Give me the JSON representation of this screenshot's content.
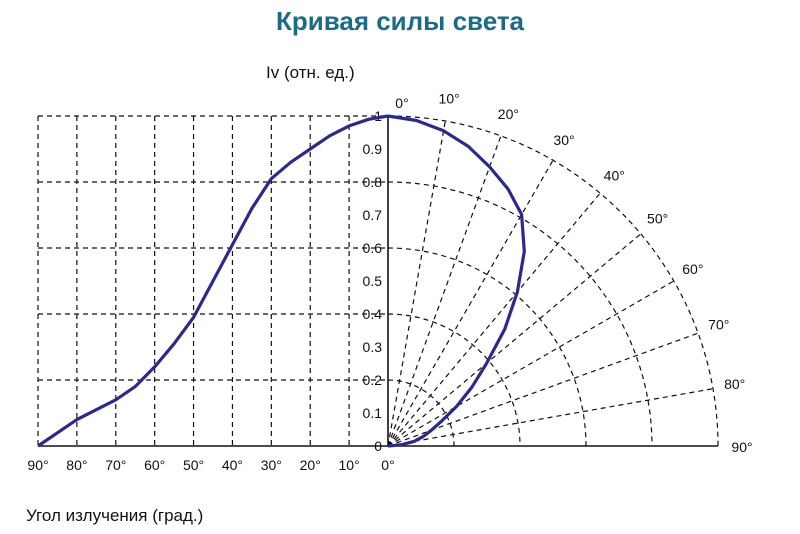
{
  "colors": {
    "title": "#1c6b84",
    "curve": "#2b2a8c",
    "grid": "#111111"
  },
  "chart_data": {
    "type": "line",
    "title": "Кривая силы света",
    "ylabel": "Iv (отн. ед.)",
    "xlabel": "Угол излучения (град.)",
    "ylim": [
      0,
      1
    ],
    "xlim": [
      0,
      90
    ],
    "grid": true,
    "y_ticks": [
      "0",
      "0.1",
      "0.2",
      "0.3",
      "0.4",
      "0.5",
      "0.6",
      "0.7",
      "0.8",
      "0.9",
      "1"
    ],
    "x_ticks": [
      "90°",
      "80°",
      "70°",
      "60°",
      "50°",
      "40°",
      "30°",
      "20°",
      "10°",
      "0°"
    ],
    "polar_angle_labels": [
      "0°",
      "10°",
      "20°",
      "30°",
      "40°",
      "50°",
      "60°",
      "70°",
      "80°",
      "90°"
    ],
    "series": [
      {
        "x": [
          0,
          5,
          10,
          15,
          20,
          25,
          30,
          35,
          40,
          45,
          50,
          55,
          60,
          65,
          70,
          75,
          80,
          85,
          90
        ],
        "values": [
          1.0,
          0.99,
          0.97,
          0.94,
          0.9,
          0.86,
          0.81,
          0.72,
          0.61,
          0.5,
          0.39,
          0.31,
          0.24,
          0.18,
          0.14,
          0.11,
          0.08,
          0.04,
          0.0
        ]
      }
    ]
  }
}
